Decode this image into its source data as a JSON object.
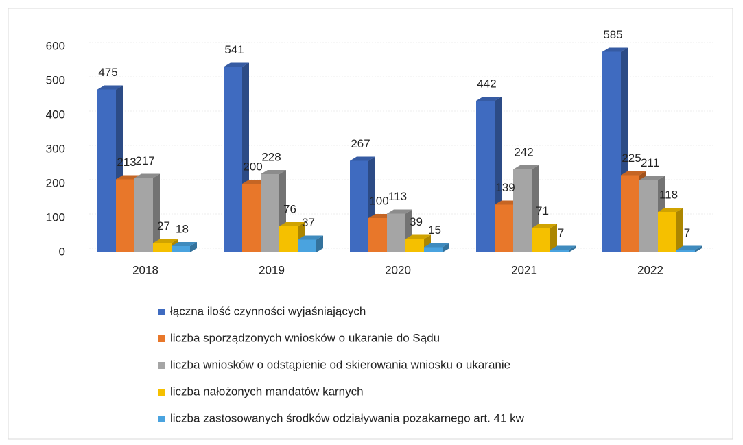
{
  "chart_data": {
    "type": "bar3d",
    "categories": [
      "2018",
      "2019",
      "2020",
      "2021",
      "2022"
    ],
    "series": [
      {
        "name": "łączna ilość czynności wyjaśniających",
        "color": "#3f6bc0",
        "values": [
          475,
          541,
          267,
          442,
          585
        ]
      },
      {
        "name": "liczba sporządzonych wniosków o ukaranie do Sądu",
        "color": "#e8772a",
        "values": [
          213,
          200,
          100,
          139,
          225
        ]
      },
      {
        "name": "liczba wniosków o odstąpienie od skierowania wniosku o ukaranie",
        "color": "#a5a5a5",
        "values": [
          217,
          228,
          113,
          242,
          211
        ]
      },
      {
        "name": "liczba nałożonych mandatów karnych",
        "color": "#f5c000",
        "values": [
          27,
          76,
          39,
          71,
          118
        ]
      },
      {
        "name": "liczba zastosowanych środków odziaływania pozakarnego art. 41 kw",
        "color": "#4aa3df",
        "values": [
          18,
          37,
          15,
          7,
          7
        ]
      }
    ],
    "ylim": [
      0,
      600
    ],
    "yticks": [
      0,
      100,
      200,
      300,
      400,
      500,
      600
    ],
    "grid": true,
    "legend": "bottom"
  }
}
